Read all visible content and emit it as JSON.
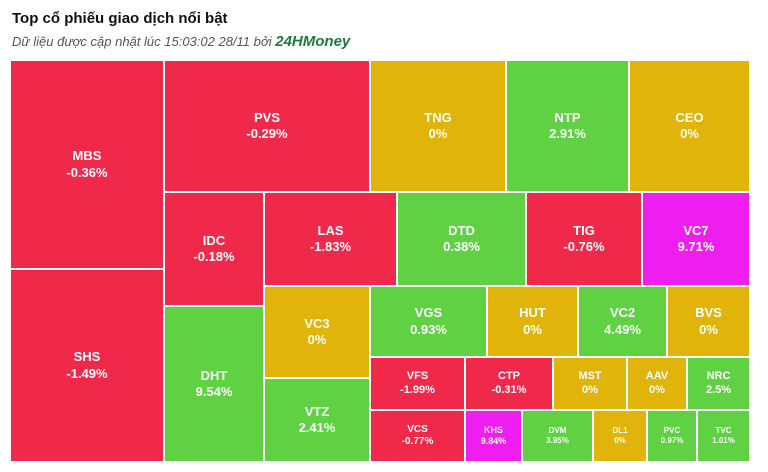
{
  "header": {
    "title": "Top cổ phiếu giao dịch nổi bật",
    "subtitle_prefix": "Dữ liệu được cập nhật lúc 15:03:02 28/11 bởi",
    "brand": "24HMoney"
  },
  "colors": {
    "down": "#f0294b",
    "flat": "#e0b40a",
    "up": "#5fd143",
    "ceiling": "#ee1ef0"
  },
  "chart_data": {
    "type": "treemap",
    "title": "Top cổ phiếu giao dịch nổi bật",
    "items": [
      {
        "ticker": "MBS",
        "change": "-0.36%",
        "value": -0.36,
        "status": "down"
      },
      {
        "ticker": "SHS",
        "change": "-1.49%",
        "value": -1.49,
        "status": "down"
      },
      {
        "ticker": "PVS",
        "change": "-0.29%",
        "value": -0.29,
        "status": "down"
      },
      {
        "ticker": "IDC",
        "change": "-0.18%",
        "value": -0.18,
        "status": "down"
      },
      {
        "ticker": "DHT",
        "change": "9.54%",
        "value": 9.54,
        "status": "up"
      },
      {
        "ticker": "TNG",
        "change": "0%",
        "value": 0,
        "status": "flat"
      },
      {
        "ticker": "NTP",
        "change": "2.91%",
        "value": 2.91,
        "status": "up"
      },
      {
        "ticker": "CEO",
        "change": "0%",
        "value": 0,
        "status": "flat"
      },
      {
        "ticker": "LAS",
        "change": "-1.83%",
        "value": -1.83,
        "status": "down"
      },
      {
        "ticker": "DTD",
        "change": "0.38%",
        "value": 0.38,
        "status": "up"
      },
      {
        "ticker": "TIG",
        "change": "-0.76%",
        "value": -0.76,
        "status": "down"
      },
      {
        "ticker": "VC7",
        "change": "9.71%",
        "value": 9.71,
        "status": "ceiling"
      },
      {
        "ticker": "VC3",
        "change": "0%",
        "value": 0,
        "status": "flat"
      },
      {
        "ticker": "VTZ",
        "change": "2.41%",
        "value": 2.41,
        "status": "up"
      },
      {
        "ticker": "VGS",
        "change": "0.93%",
        "value": 0.93,
        "status": "up"
      },
      {
        "ticker": "HUT",
        "change": "0%",
        "value": 0,
        "status": "flat"
      },
      {
        "ticker": "VC2",
        "change": "4.49%",
        "value": 4.49,
        "status": "up"
      },
      {
        "ticker": "BVS",
        "change": "0%",
        "value": 0,
        "status": "flat"
      },
      {
        "ticker": "VFS",
        "change": "-1.99%",
        "value": -1.99,
        "status": "down"
      },
      {
        "ticker": "CTP",
        "change": "-0.31%",
        "value": -0.31,
        "status": "down"
      },
      {
        "ticker": "MST",
        "change": "0%",
        "value": 0,
        "status": "flat"
      },
      {
        "ticker": "AAV",
        "change": "0%",
        "value": 0,
        "status": "flat"
      },
      {
        "ticker": "NRC",
        "change": "2.5%",
        "value": 2.5,
        "status": "up"
      },
      {
        "ticker": "VCS",
        "change": "-0.77%",
        "value": -0.77,
        "status": "down"
      },
      {
        "ticker": "KHS",
        "change": "9.84%",
        "value": 9.84,
        "status": "ceiling"
      },
      {
        "ticker": "DVM",
        "change": "3.95%",
        "value": 3.95,
        "status": "up"
      },
      {
        "ticker": "DL1",
        "change": "0%",
        "value": 0,
        "status": "flat"
      },
      {
        "ticker": "PVC",
        "change": "0.97%",
        "value": 0.97,
        "status": "up"
      },
      {
        "ticker": "TVC",
        "change": "1.01%",
        "value": 1.01,
        "status": "up"
      }
    ]
  }
}
